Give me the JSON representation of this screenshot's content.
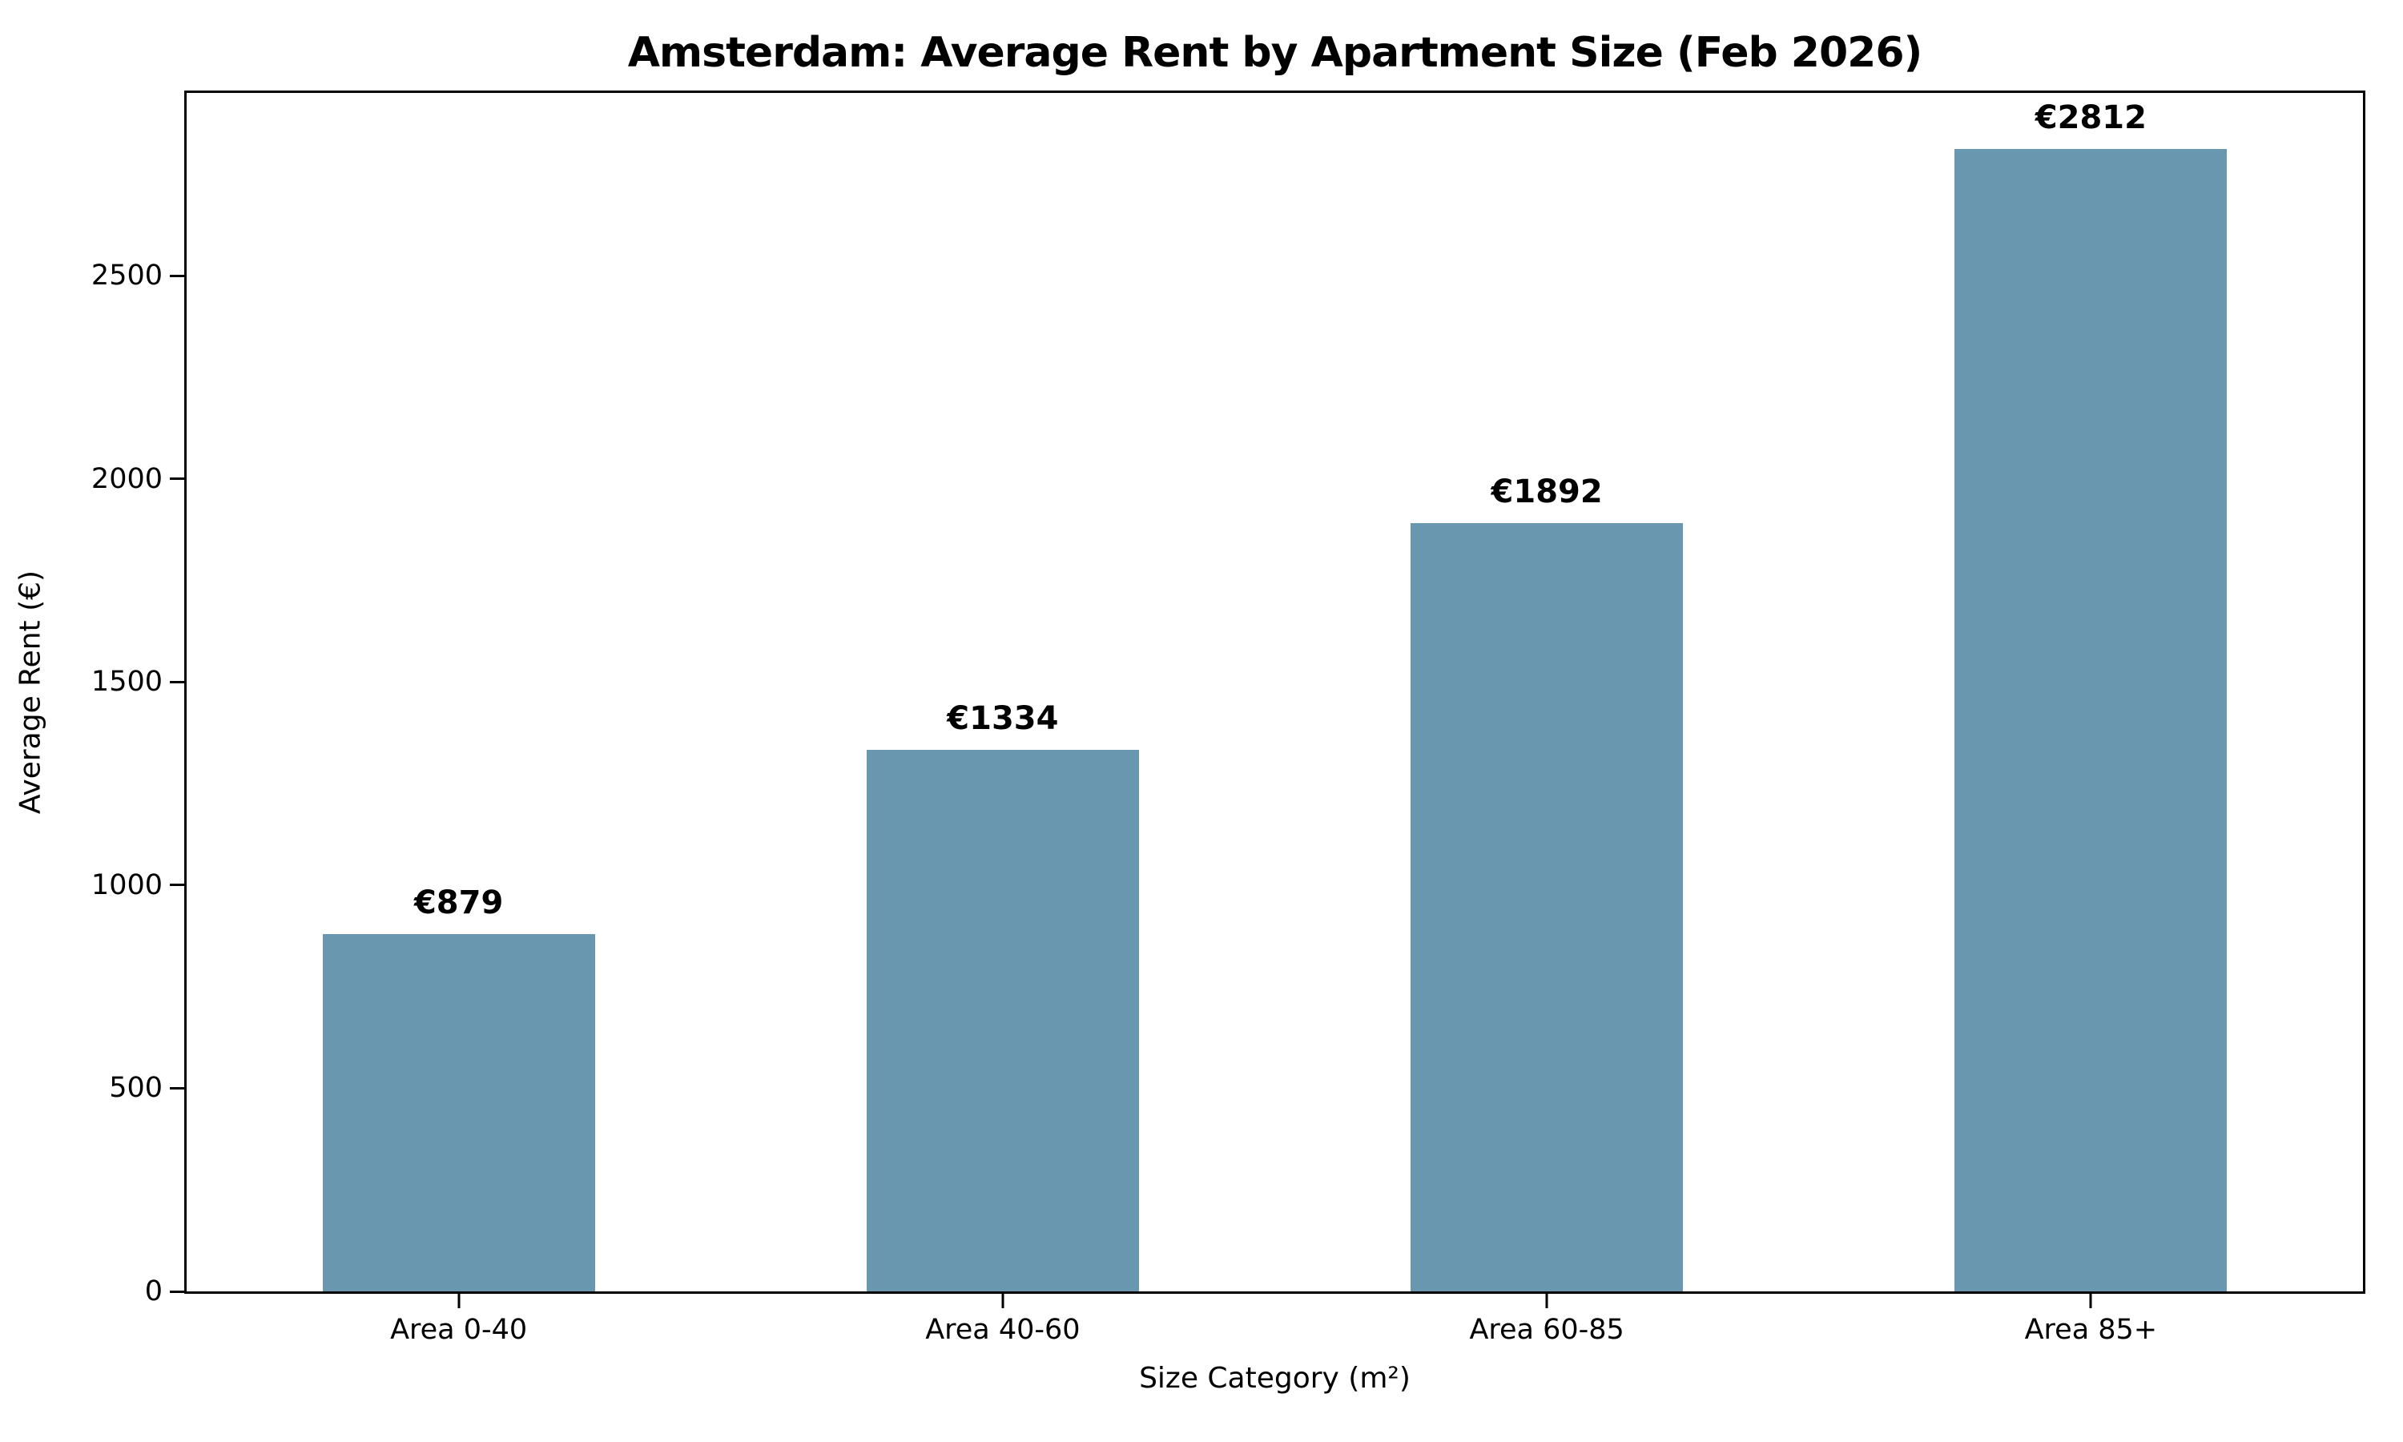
{
  "chart_data": {
    "type": "bar",
    "title": "Amsterdam: Average Rent by Apartment Size (Feb 2026)",
    "xlabel": "Size Category (m²)",
    "ylabel": "Average Rent (€)",
    "categories": [
      "Area 0-40",
      "Area 40-60",
      "Area 60-85",
      "Area 85+"
    ],
    "values": [
      879,
      1334,
      1892,
      2812
    ],
    "value_labels": [
      "€879",
      "€1334",
      "€1892",
      "€2812"
    ],
    "yticks": [
      0,
      500,
      1000,
      1500,
      2000,
      2500
    ],
    "ytick_labels": [
      "0",
      "500",
      "1000",
      "1500",
      "2000",
      "2500"
    ],
    "ylim": [
      0,
      2950
    ],
    "grid": false,
    "legend": null,
    "colors": {
      "bar": "#6a97b0",
      "text": "#000000",
      "spine": "#000000",
      "background": "#ffffff"
    }
  }
}
